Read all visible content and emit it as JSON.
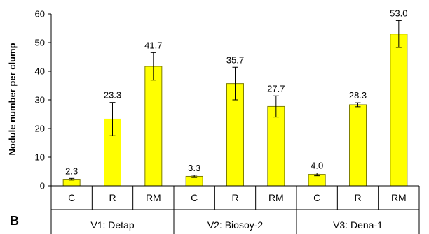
{
  "chart_data": {
    "type": "bar",
    "panel_label": "B",
    "ylabel": "Nodule number per clump",
    "xlabel": "",
    "ylim": [
      0,
      60
    ],
    "yticks": [
      0,
      10,
      20,
      30,
      40,
      50,
      60
    ],
    "grid": false,
    "legend": "none",
    "bar_color": "#FFFF00",
    "bar_edge_color": "#7F7F00",
    "categories": [
      "C",
      "R",
      "RM",
      "C",
      "R",
      "RM",
      "C",
      "R",
      "RM"
    ],
    "groups": [
      {
        "label": "V1: Detap",
        "size": 3
      },
      {
        "label": "V2: Biosoy-2",
        "size": 3
      },
      {
        "label": "V3: Dena-1",
        "size": 3
      }
    ],
    "values": [
      2.3,
      23.3,
      41.7,
      3.3,
      35.7,
      27.7,
      4.0,
      28.3,
      53.0
    ],
    "value_labels": [
      "2.3",
      "23.3",
      "41.7",
      "3.3",
      "35.7",
      "27.7",
      "4.0",
      "28.3",
      "53.0"
    ],
    "errors": [
      0.3,
      5.8,
      4.8,
      0.4,
      5.7,
      3.7,
      0.5,
      0.7,
      4.7
    ]
  }
}
